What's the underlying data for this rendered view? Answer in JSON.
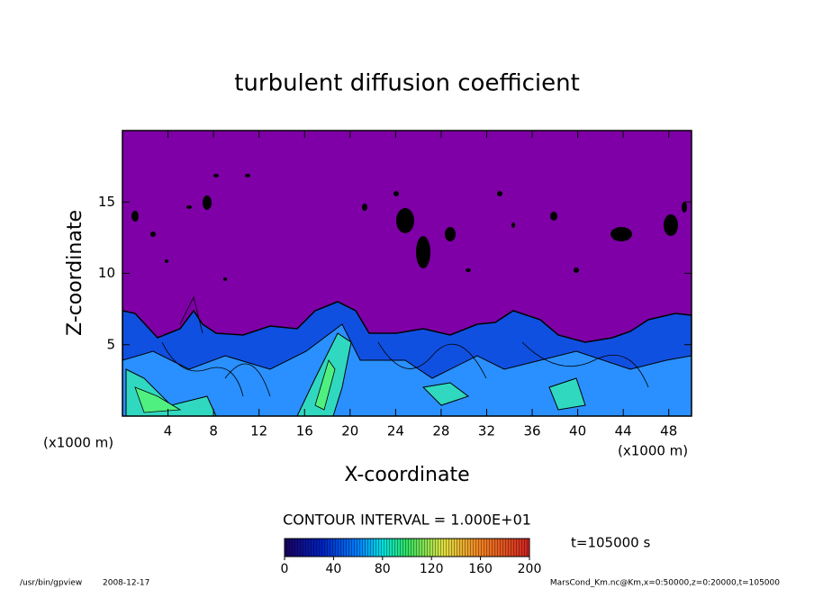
{
  "chart_data": {
    "type": "contour",
    "title": "turbulent diffusion coefficient",
    "x_label": "X-coordinate",
    "y_label": "Z-coordinate",
    "x_unit": "(x1000 m)",
    "y_unit": "(x1000 m)",
    "xlim": [
      0,
      50
    ],
    "xticks": [
      4,
      8,
      12,
      16,
      20,
      24,
      28,
      32,
      36,
      40,
      44,
      48
    ],
    "ylim": [
      0,
      20
    ],
    "yticks": [
      5,
      10,
      15
    ],
    "contour_interval": "CONTOUR INTERVAL = 1.000E+01",
    "colorbar": {
      "lim": [
        0,
        200
      ],
      "ticks": [
        0,
        40,
        80,
        120,
        160,
        200
      ]
    },
    "time": "t=105000 s",
    "footer_left": "/usr/bin/gpview",
    "footer_date": "2008-12-17",
    "footer_right": "MarsCond_Km.nc@Km,x=0:50000,z=0:20000,t=105000"
  }
}
